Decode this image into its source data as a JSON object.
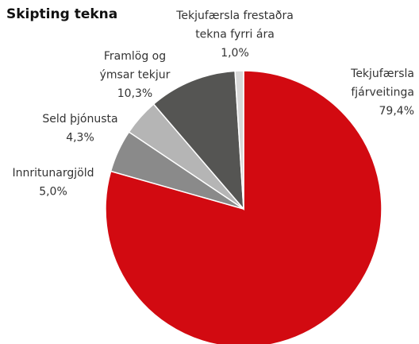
{
  "chart_data": {
    "type": "pie",
    "title": "Skipting tekna",
    "categories": [
      [
        "Tekjufærsla",
        "fjárveitinga"
      ],
      [
        "Innritunargjöld"
      ],
      [
        "Seld þjónusta"
      ],
      [
        "Framlög og",
        "ýmsar tekjur"
      ],
      [
        "Tekjufærsla frestaðra",
        "tekna fyrri ára"
      ]
    ],
    "values": [
      79.4,
      5.0,
      4.3,
      10.3,
      1.0
    ],
    "value_labels": [
      "79,4%",
      "5,0%",
      "4,3%",
      "10,3%",
      "1,0%"
    ],
    "colors": [
      "#d20a11",
      "#8a8a8a",
      "#b5b5b5",
      "#555553",
      "#d8d8d8"
    ]
  }
}
